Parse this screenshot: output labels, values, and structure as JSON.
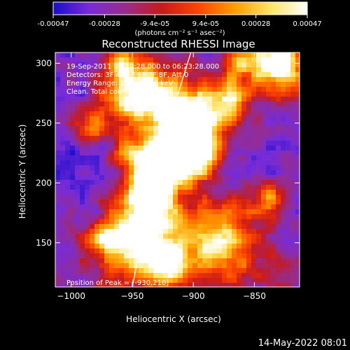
{
  "colorbar": {
    "ticks": [
      "-0.00047",
      "-0.00028",
      "-9.4e-05",
      "9.4e-05",
      "0.00028",
      "0.00047"
    ],
    "tick_values": [
      -0.00047,
      -0.00028,
      -9.4e-05,
      9.4e-05,
      0.00028,
      0.00047
    ],
    "range": [
      -0.00047,
      0.00047
    ],
    "unit_label": "(photons cm⁻² s⁻¹ asec⁻²)",
    "colors": [
      "#1a0ccc",
      "#7a2bd8",
      "#9a2c8a",
      "#c81a1a",
      "#ff4400",
      "#ff9d00",
      "#ffe566",
      "#ffffff"
    ]
  },
  "chart_data": {
    "type": "heatmap",
    "title": "Reconstructed RHESSI Image",
    "xlabel": "Heliocentric X (arcsec)",
    "ylabel": "Heliocentric Y (arcsec)",
    "xlim": [
      -1013,
      -813
    ],
    "ylim": [
      113,
      309
    ],
    "x_ticks": [
      -1000,
      -950,
      -900,
      -850
    ],
    "y_ticks": [
      150,
      200,
      250,
      300
    ],
    "x_tick_labels": [
      "−1000",
      "−950",
      "−900",
      "−850"
    ],
    "y_tick_labels": [
      "150",
      "200",
      "250",
      "300"
    ],
    "grid": false,
    "annotations": [
      "19-Sep-2011 06:19:28.000 to 06:23:28.000",
      "Detectors: 3F 4F 5F 6F 7F 8F, Att 0",
      "Energy Range: 12.0 - 25.0 keV",
      "Clean. Total counts: 1.52E+04"
    ],
    "peak_label": "Position of Peak = [-930,210]",
    "peak_position": [
      -930,
      210
    ],
    "limb_curve": [
      [
        -950,
        113
      ],
      [
        -940,
        165
      ],
      [
        -930,
        210
      ],
      [
        -917,
        260
      ],
      [
        -902,
        309
      ]
    ]
  },
  "footer": {
    "timestamp": "14-May-2022 08:01"
  }
}
